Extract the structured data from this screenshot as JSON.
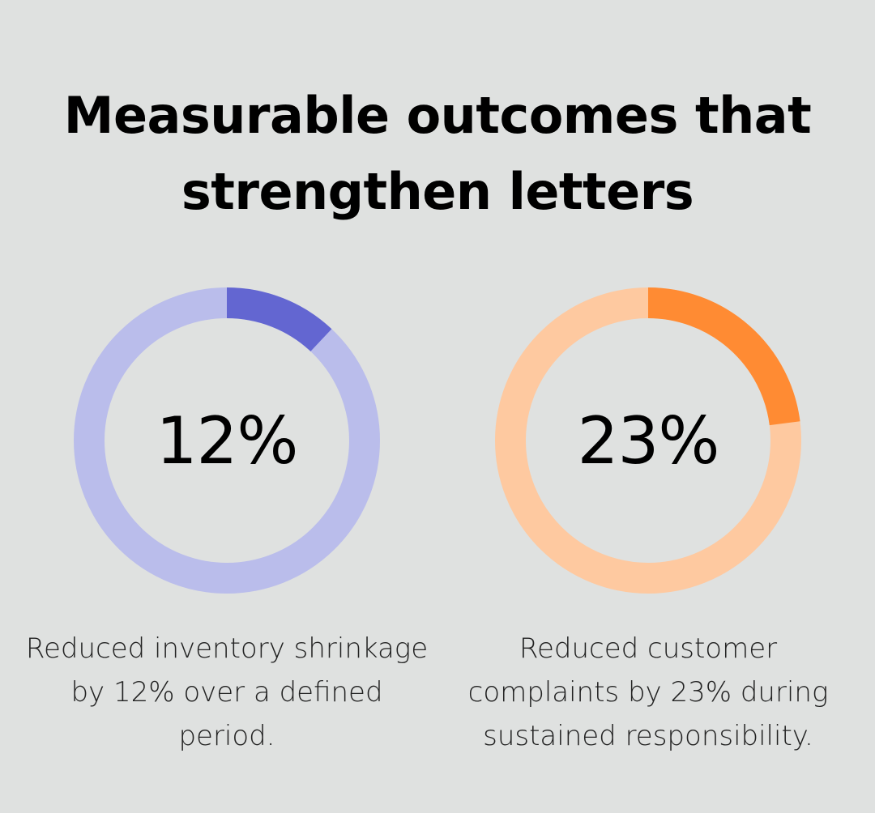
{
  "title": {
    "line1": "Measurable outcomes that",
    "line2": "strengthen letters"
  },
  "chart_data": [
    {
      "type": "pie",
      "variant": "donut",
      "value": 12,
      "max": 100,
      "label": "12%",
      "caption": "Reduced inventory shrinkage by 12% over a defined period.",
      "colors": {
        "fill": "#6366d1",
        "track": "#babdeb"
      }
    },
    {
      "type": "pie",
      "variant": "donut",
      "value": 23,
      "max": 100,
      "label": "23%",
      "caption": "Reduced customer complaints by 23% during sustained responsibility.",
      "colors": {
        "fill": "#ff8b33",
        "track": "#fec9a0"
      }
    }
  ]
}
